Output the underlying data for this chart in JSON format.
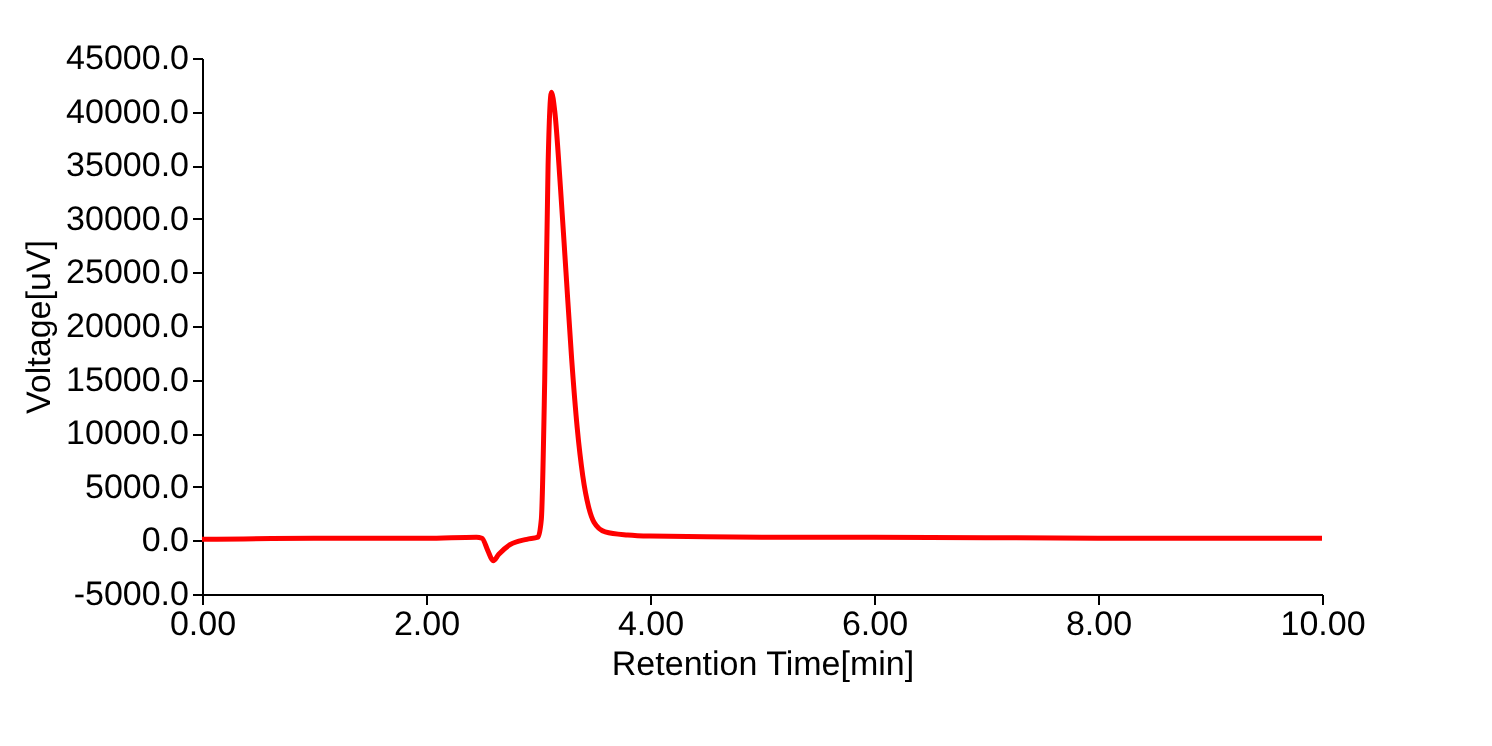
{
  "chart_data": {
    "type": "line",
    "xlabel": "Retention Time[min]",
    "ylabel": "Voltage[uV]",
    "x": [
      0,
      1,
      2,
      2.45,
      2.5,
      2.55,
      2.6,
      2.65,
      2.75,
      2.9,
      3.0,
      3.03,
      3.06,
      3.09,
      3.12,
      3.15,
      3.2,
      3.25,
      3.3,
      3.35,
      3.4,
      3.45,
      3.5,
      3.6,
      3.8,
      4.0,
      5,
      6,
      8,
      10
    ],
    "series": [
      {
        "color": "#ff0000",
        "values": [
          100,
          200,
          200,
          300,
          200,
          -900,
          -1900,
          -1300,
          -400,
          100,
          300,
          2000,
          15000,
          35000,
          41800,
          40000,
          33000,
          25000,
          17000,
          10500,
          6000,
          3200,
          1700,
          800,
          500,
          400,
          300,
          300,
          200,
          200
        ]
      }
    ],
    "xlim": [
      0,
      10
    ],
    "xticks": [
      {
        "value": 0,
        "label": "0.00"
      },
      {
        "value": 2,
        "label": "2.00"
      },
      {
        "value": 4,
        "label": "4.00"
      },
      {
        "value": 6,
        "label": "6.00"
      },
      {
        "value": 8,
        "label": "8.00"
      },
      {
        "value": 10,
        "label": "10.00"
      }
    ],
    "ylim": [
      -5000,
      45000
    ],
    "yticks": [
      {
        "value": -5000,
        "label": "-5000.0"
      },
      {
        "value": 0,
        "label": "0.0"
      },
      {
        "value": 5000,
        "label": "5000.0"
      },
      {
        "value": 10000,
        "label": "10000.0"
      },
      {
        "value": 15000,
        "label": "15000.0"
      },
      {
        "value": 20000,
        "label": "20000.0"
      },
      {
        "value": 25000,
        "label": "25000.0"
      },
      {
        "value": 30000,
        "label": "30000.0"
      },
      {
        "value": 35000,
        "label": "35000.0"
      },
      {
        "value": 40000,
        "label": "40000.0"
      },
      {
        "value": 45000,
        "label": "45000.0"
      }
    ],
    "grid": false
  }
}
